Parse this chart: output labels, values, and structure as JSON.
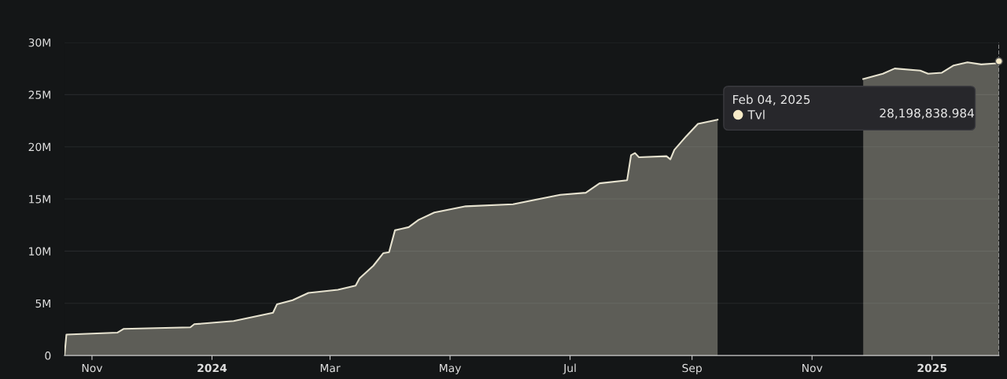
{
  "chart_data": {
    "type": "area",
    "x": [
      "2023-10-18",
      "2023-10-19",
      "2023-11-14",
      "2023-11-17",
      "2023-12-21",
      "2023-12-23",
      "2024-01-12",
      "2024-02-01",
      "2024-02-03",
      "2024-02-11",
      "2024-02-19",
      "2024-03-05",
      "2024-03-14",
      "2024-03-16",
      "2024-03-23",
      "2024-03-28",
      "2024-03-31",
      "2024-04-03",
      "2024-04-10",
      "2024-04-15",
      "2024-04-23",
      "2024-05-09",
      "2024-06-02",
      "2024-06-26",
      "2024-07-09",
      "2024-07-16",
      "2024-07-30",
      "2024-08-01",
      "2024-08-03",
      "2024-08-05",
      "2024-08-19",
      "2024-08-21",
      "2024-08-23",
      "2024-08-29",
      "2024-09-04",
      "2024-09-14",
      "2024-10-25",
      "2024-11-27",
      "2024-12-07",
      "2024-12-13",
      "2024-12-26",
      "2024-12-30",
      "2025-01-06",
      "2025-01-12",
      "2025-01-19",
      "2025-01-26",
      "2025-02-03",
      "2025-02-04"
    ],
    "series": [
      {
        "name": "Tvl",
        "color": "#e6e2cf",
        "values": [
          0,
          2000000,
          2200000,
          2550000,
          2700000,
          3000000,
          3300000,
          4100000,
          4900000,
          5300000,
          6000000,
          6300000,
          6700000,
          7400000,
          8600000,
          9800000,
          9900000,
          12000000,
          12300000,
          13000000,
          13700000,
          14300000,
          14500000,
          15400000,
          15600000,
          16500000,
          16800000,
          19200000,
          19400000,
          19000000,
          19100000,
          18800000,
          19700000,
          21000000,
          22200000,
          22600000,
          null,
          26500000,
          27000000,
          27500000,
          27300000,
          27000000,
          27100000,
          27800000,
          28100000,
          27900000,
          28000000,
          28200000
        ]
      }
    ],
    "xlim": [
      "2023-10-18",
      "2025-02-04"
    ],
    "xticks": [
      {
        "value": "2023-11-01",
        "label": "Nov"
      },
      {
        "value": "2024-01-01",
        "label": "2024"
      },
      {
        "value": "2024-03-01",
        "label": "Mar"
      },
      {
        "value": "2024-05-01",
        "label": "May"
      },
      {
        "value": "2024-07-01",
        "label": "Jul"
      },
      {
        "value": "2024-09-01",
        "label": "Sep"
      },
      {
        "value": "2024-11-01",
        "label": "Nov"
      },
      {
        "value": "2025-01-01",
        "label": "2025"
      }
    ],
    "ylim": [
      0,
      30000000
    ],
    "yticks": [
      0,
      {
        "value": 5000000,
        "label": "5M"
      },
      {
        "value": 10000000,
        "label": "10M"
      },
      {
        "value": 15000000,
        "label": "15M"
      },
      {
        "value": 20000000,
        "label": "20M"
      },
      {
        "value": 25000000,
        "label": "25M"
      },
      {
        "value": 30000000,
        "label": "30M"
      }
    ],
    "grid": "y",
    "legend": "top right",
    "legend_title": "Feb 04, 2025",
    "ref_lines": [
      {
        "axis": "x",
        "value": "2025-02-04",
        "color": "#bbbbbb",
        "line_style": "dashed"
      }
    ],
    "annotations": [
      "28,198,838.984"
    ]
  }
}
